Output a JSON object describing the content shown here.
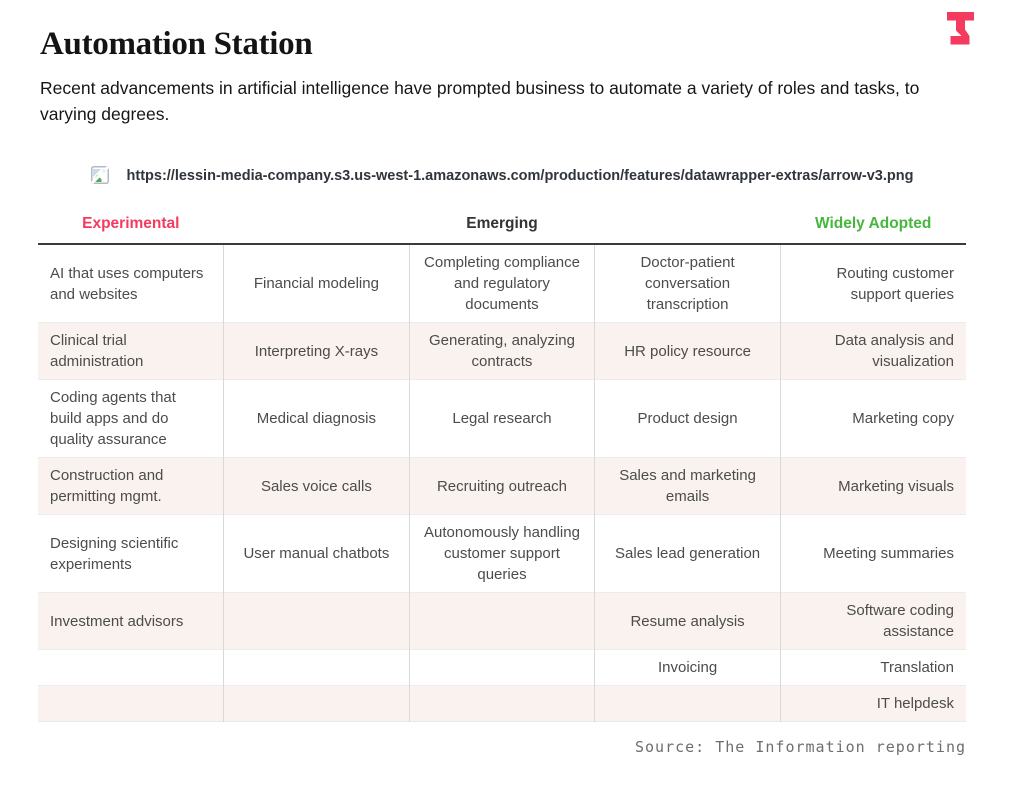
{
  "page": {
    "title": "Automation Station",
    "subtitle": "Recent advancements in artificial intelligence have prompted business to automate a variety of roles and tasks, to varying degrees.",
    "broken_image_alt": "https://lessin-media-company.s3.us-west-1.amazonaws.com/production/features/datawrapper-extras/arrow-v3.png",
    "source": "Source: The Information reporting"
  },
  "colors": {
    "brand_pink": "#f43a5e",
    "header_experimental": "#f43a5e",
    "header_emerging": "#333333",
    "header_widely_adopted": "#47b63c",
    "row_tint": "#faf2ee",
    "rule_dark": "#3b3b3b"
  },
  "chart_data": {
    "type": "table",
    "title": "Automation Station",
    "subtitle": "Recent advancements in artificial intelligence have prompted business to automate a variety of roles and tasks, to varying degrees.",
    "source": "Source: The Information reporting",
    "broken_image_alt": "https://lessin-media-company.s3.us-west-1.amazonaws.com/production/features/datawrapper-extras/arrow-v3.png",
    "column_headers": [
      "Experimental",
      "",
      "Emerging",
      "",
      "Widely Adopted"
    ],
    "header_colors": [
      "#f43a5e",
      "#333333",
      "#333333",
      "#333333",
      "#47b63c"
    ],
    "column_alignments": [
      "left",
      "center",
      "center",
      "center",
      "right"
    ],
    "rows": [
      [
        "AI that uses computers and websites",
        "Financial modeling",
        "Completing compliance and regulatory documents",
        "Doctor-patient conversation transcription",
        "Routing customer support queries"
      ],
      [
        "Clinical trial administration",
        "Interpreting X-rays",
        "Generating, analyzing contracts",
        "HR policy resource",
        "Data analysis and visualization"
      ],
      [
        "Coding agents that build apps and do quality assurance",
        "Medical diagnosis",
        "Legal research",
        "Product design",
        "Marketing copy"
      ],
      [
        "Construction and permitting mgmt.",
        "Sales voice calls",
        "Recruiting outreach",
        "Sales and marketing emails",
        "Marketing visuals"
      ],
      [
        "Designing scientific experiments",
        "User manual chatbots",
        "Autonomously handling customer support queries",
        "Sales lead generation",
        "Meeting summaries"
      ],
      [
        "Investment advisors",
        "",
        "",
        "Resume analysis",
        "Software coding assistance"
      ],
      [
        "",
        "",
        "",
        "Invoicing",
        "Translation"
      ],
      [
        "",
        "",
        "",
        "",
        "IT helpdesk"
      ]
    ],
    "legend_note": "grid off, header rule dark, alternating row tint"
  }
}
